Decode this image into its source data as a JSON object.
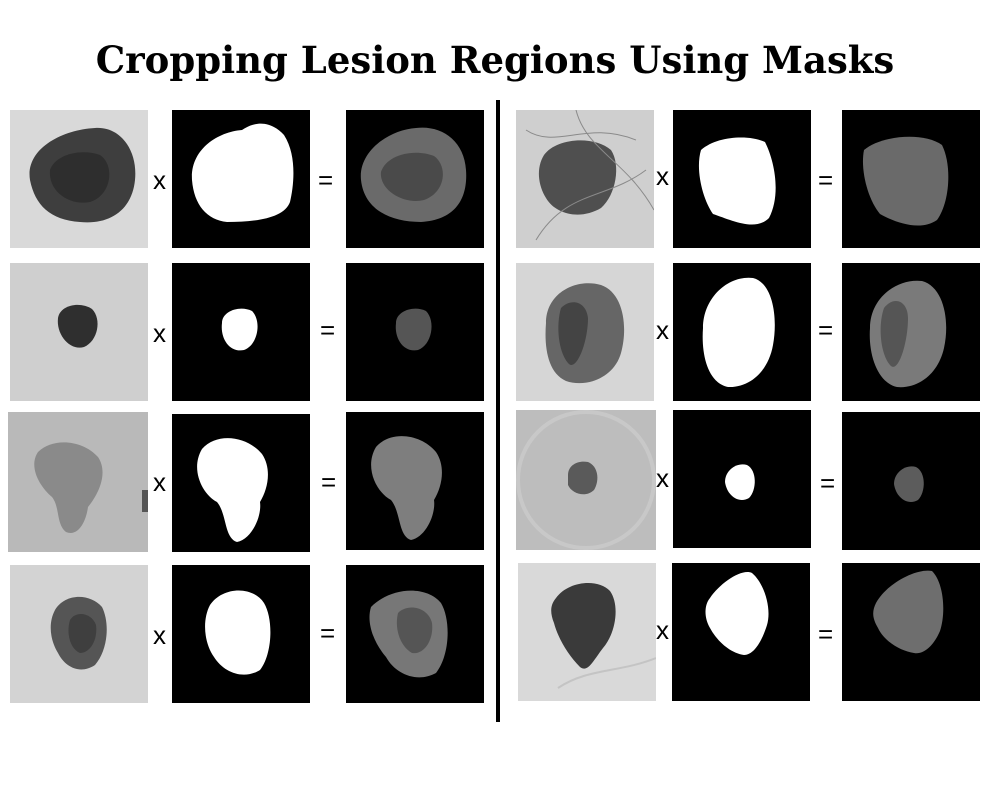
{
  "title": "Cropping Lesion Regions Using Masks",
  "operators": {
    "multiply": "x",
    "equals": "="
  },
  "colors": {
    "background": "#ffffff",
    "mask_background": "#000000",
    "mask_fill": "#ffffff"
  },
  "panels": [
    {
      "name": "left",
      "rows": 4
    },
    {
      "name": "right",
      "rows": 4
    }
  ]
}
